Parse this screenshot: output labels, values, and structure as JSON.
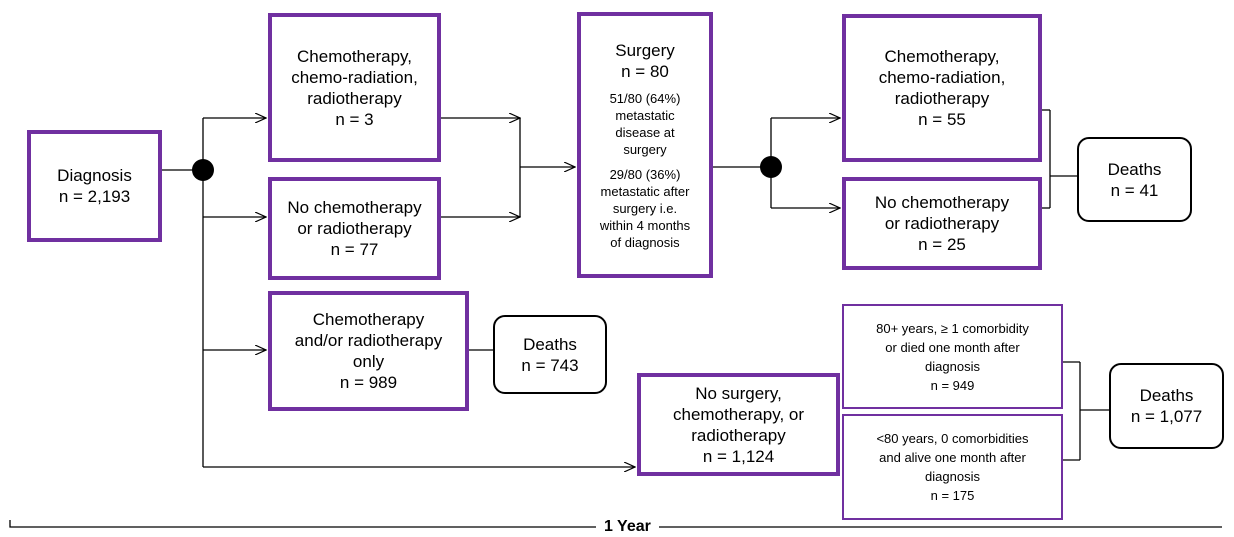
{
  "nodes": [
    {
      "lines": [
        "Diagnosis",
        "n = 2,193"
      ]
    },
    {
      "lines": [
        "Chemotherapy,",
        "chemo-radiation,",
        "radiotherapy",
        "n = 3"
      ]
    },
    {
      "lines": [
        "No chemotherapy",
        "or radiotherapy",
        "n = 77"
      ]
    },
    {
      "lines": [
        "Chemotherapy",
        "and/or radiotherapy",
        "only",
        "n = 989"
      ]
    },
    {
      "lines": [
        "Deaths",
        "n = 743"
      ]
    },
    {
      "lines": [
        "Surgery",
        "n = 80"
      ],
      "notes": [
        [
          "51/80 (64%)",
          "metastatic",
          "disease at",
          "surgery"
        ],
        [
          "29/80 (36%)",
          "metastatic after",
          "surgery i.e.",
          "within 4 months",
          "of diagnosis"
        ]
      ]
    },
    {
      "lines": [
        "Chemotherapy,",
        "chemo-radiation,",
        "radiotherapy",
        "n = 55"
      ]
    },
    {
      "lines": [
        "No chemotherapy",
        "or radiotherapy",
        "n = 25"
      ]
    },
    {
      "lines": [
        "Deaths",
        "n = 41"
      ]
    },
    {
      "lines": [
        "No surgery,",
        "chemotherapy, or",
        "radiotherapy",
        "n = 1,124"
      ]
    },
    {
      "lines": [
        "80+ years, ≥ 1 comorbidity",
        "or died one month after",
        "diagnosis",
        "n = 949"
      ]
    },
    {
      "lines": [
        "<80 years, 0 comorbidities",
        "and alive one month after",
        "diagnosis",
        "n = 175"
      ]
    },
    {
      "lines": [
        "Deaths",
        "n = 1,077"
      ]
    }
  ],
  "timeline": {
    "label": "1 Year"
  }
}
